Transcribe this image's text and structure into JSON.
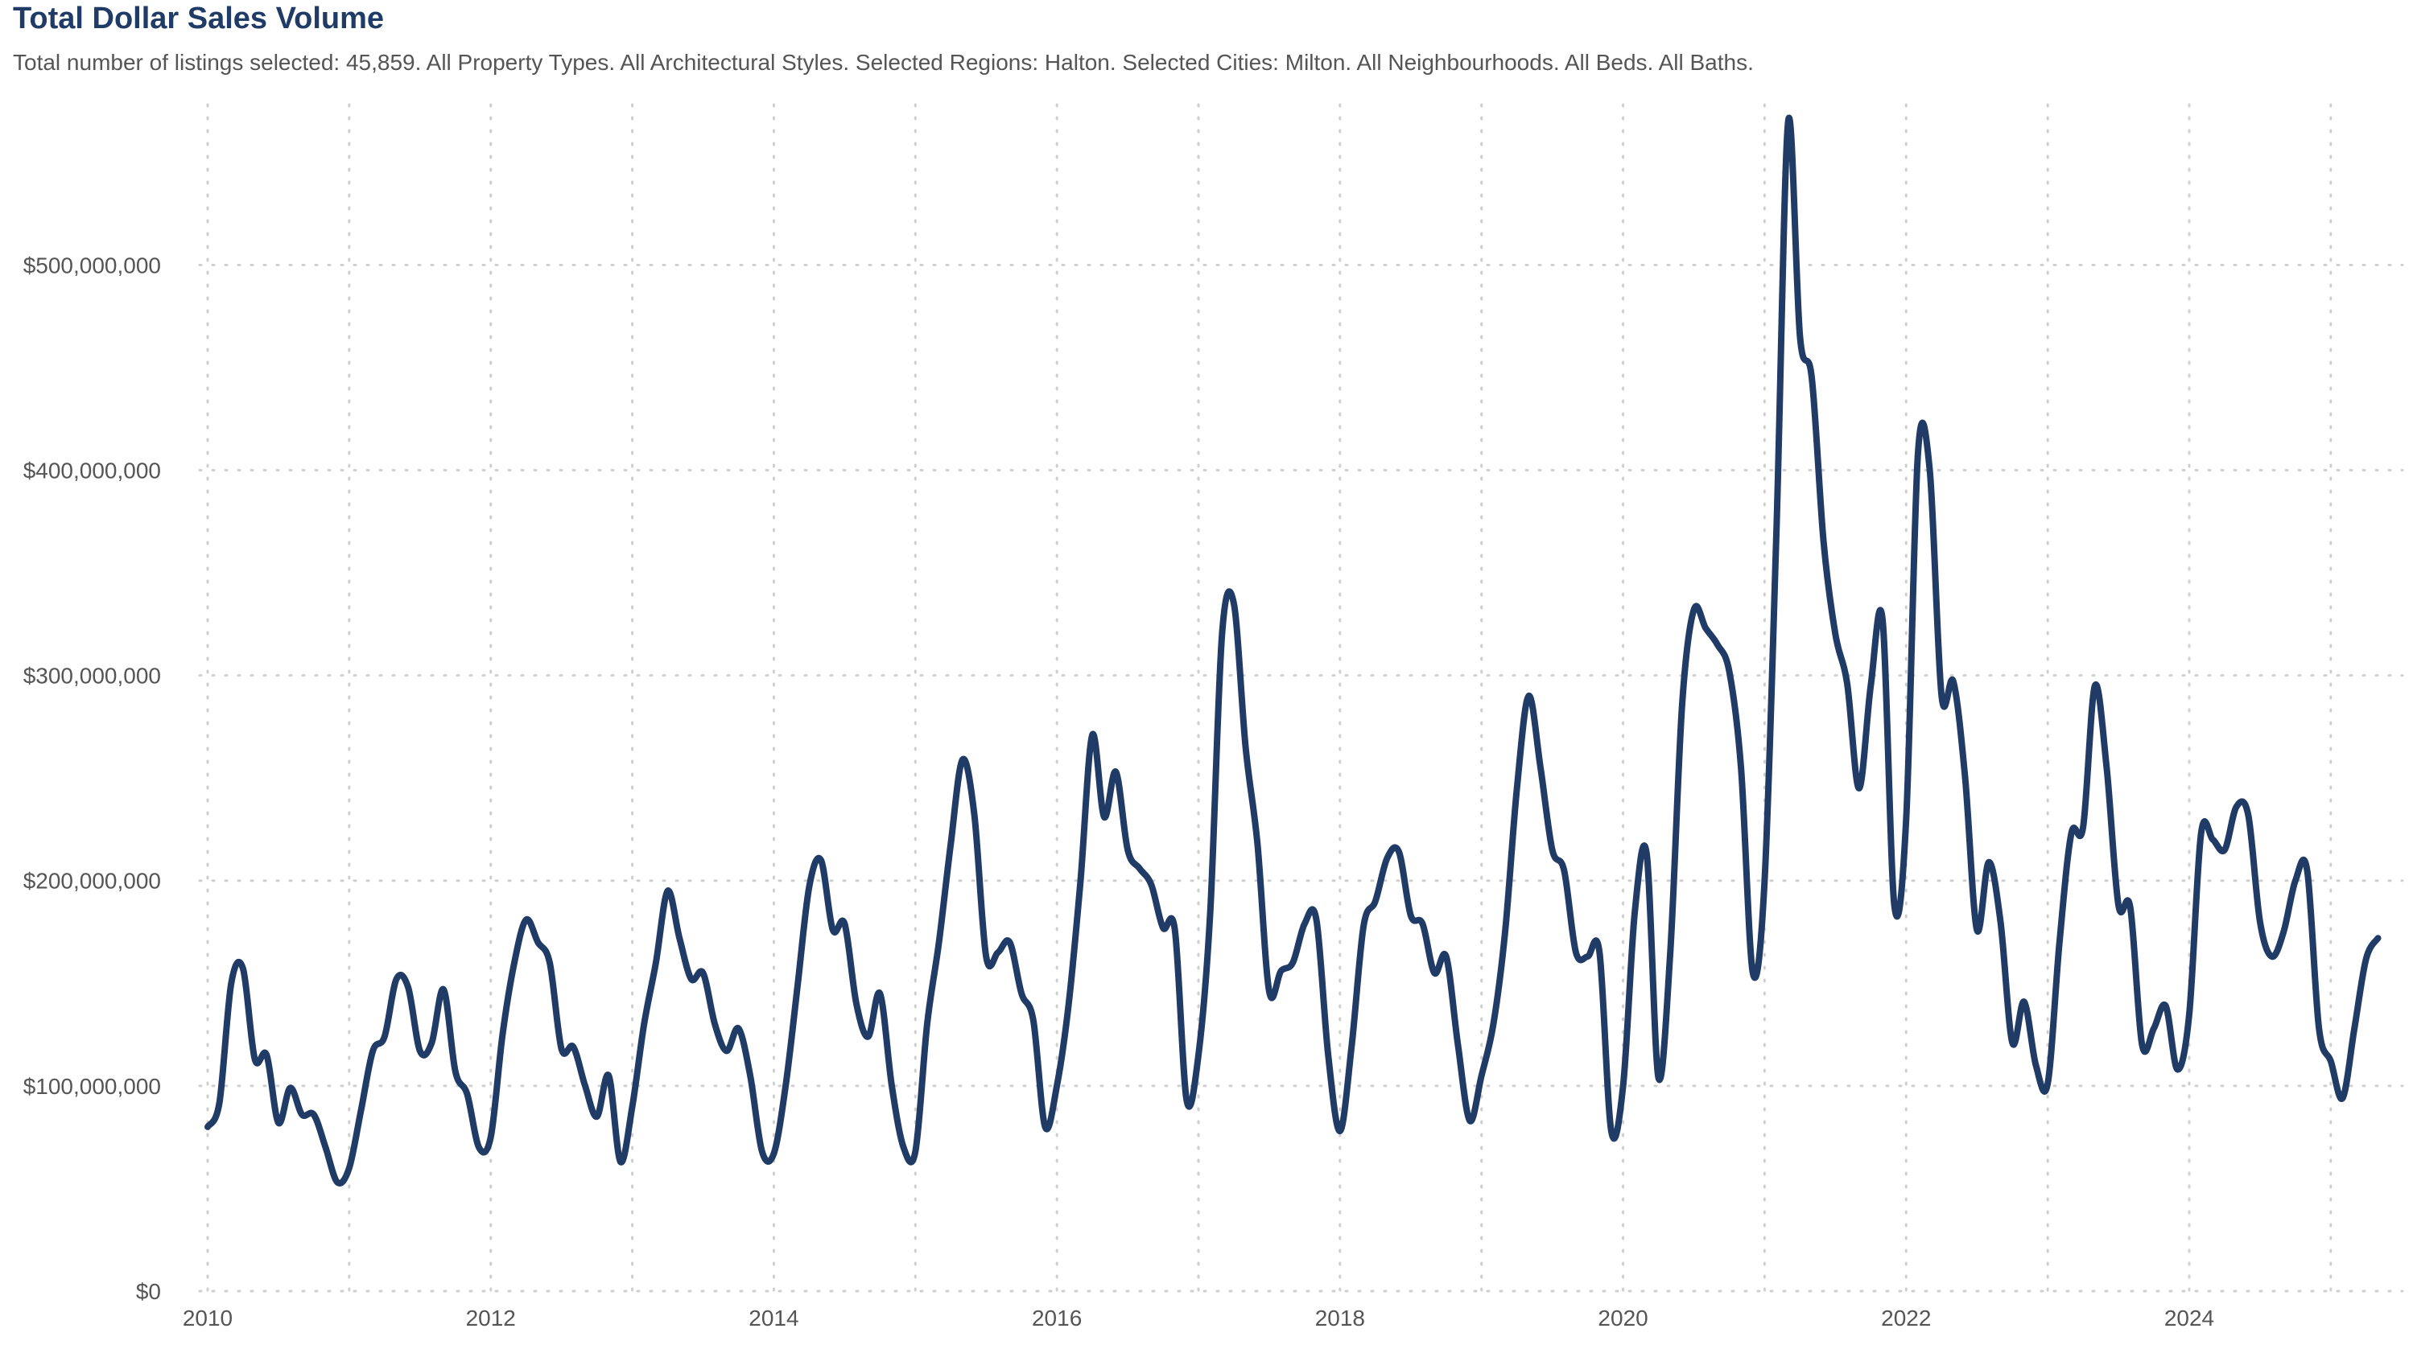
{
  "chart_data": {
    "type": "line",
    "title": "Total Dollar Sales Volume",
    "subtitle": "Total number of listings selected: 45,859. All Property Types. All Architectural Styles. Selected Regions: Halton. Selected Cities: Milton. All Neighbourhoods. All Beds. All Baths.",
    "xlabel": "",
    "ylabel": "",
    "grid": true,
    "x_ticks": [
      "2010",
      "2012",
      "2014",
      "2016",
      "2018",
      "2020",
      "2022",
      "2024"
    ],
    "y_ticks": [
      "$0",
      "$100,000,000",
      "$200,000,000",
      "$300,000,000",
      "$400,000,000",
      "$500,000,000"
    ],
    "xlim": [
      "2010-01",
      "2025-06"
    ],
    "ylim": [
      0,
      575000000
    ],
    "series": [
      {
        "points": [
          [
            "2010-01",
            80000000
          ],
          [
            "2010-02",
            92000000
          ],
          [
            "2010-03",
            150000000
          ],
          [
            "2010-04",
            157000000
          ],
          [
            "2010-05",
            113000000
          ],
          [
            "2010-06",
            115000000
          ],
          [
            "2010-07",
            82000000
          ],
          [
            "2010-08",
            99000000
          ],
          [
            "2010-09",
            86000000
          ],
          [
            "2010-10",
            86000000
          ],
          [
            "2010-11",
            70000000
          ],
          [
            "2010-12",
            53000000
          ],
          [
            "2011-01",
            60000000
          ],
          [
            "2011-02",
            88000000
          ],
          [
            "2011-03",
            117000000
          ],
          [
            "2011-04",
            124000000
          ],
          [
            "2011-05",
            152000000
          ],
          [
            "2011-06",
            148000000
          ],
          [
            "2011-07",
            117000000
          ],
          [
            "2011-08",
            121000000
          ],
          [
            "2011-09",
            147000000
          ],
          [
            "2011-10",
            107000000
          ],
          [
            "2011-11",
            96000000
          ],
          [
            "2011-12",
            70000000
          ],
          [
            "2012-01",
            75000000
          ],
          [
            "2012-02",
            125000000
          ],
          [
            "2012-03",
            160000000
          ],
          [
            "2012-04",
            181000000
          ],
          [
            "2012-05",
            170000000
          ],
          [
            "2012-06",
            160000000
          ],
          [
            "2012-07",
            118000000
          ],
          [
            "2012-08",
            119000000
          ],
          [
            "2012-09",
            100000000
          ],
          [
            "2012-10",
            85000000
          ],
          [
            "2012-11",
            105000000
          ],
          [
            "2012-12",
            63000000
          ],
          [
            "2013-01",
            90000000
          ],
          [
            "2013-02",
            130000000
          ],
          [
            "2013-03",
            160000000
          ],
          [
            "2013-04",
            195000000
          ],
          [
            "2013-05",
            172000000
          ],
          [
            "2013-06",
            152000000
          ],
          [
            "2013-07",
            155000000
          ],
          [
            "2013-08",
            130000000
          ],
          [
            "2013-09",
            117000000
          ],
          [
            "2013-10",
            128000000
          ],
          [
            "2013-11",
            105000000
          ],
          [
            "2013-12",
            68000000
          ],
          [
            "2014-01",
            67000000
          ],
          [
            "2014-02",
            100000000
          ],
          [
            "2014-03",
            148000000
          ],
          [
            "2014-04",
            197000000
          ],
          [
            "2014-05",
            210000000
          ],
          [
            "2014-06",
            176000000
          ],
          [
            "2014-07",
            179000000
          ],
          [
            "2014-08",
            140000000
          ],
          [
            "2014-09",
            124000000
          ],
          [
            "2014-10",
            145000000
          ],
          [
            "2014-11",
            100000000
          ],
          [
            "2014-12",
            70000000
          ],
          [
            "2015-01",
            68000000
          ],
          [
            "2015-02",
            130000000
          ],
          [
            "2015-03",
            170000000
          ],
          [
            "2015-04",
            218000000
          ],
          [
            "2015-05",
            259000000
          ],
          [
            "2015-06",
            232000000
          ],
          [
            "2015-07",
            163000000
          ],
          [
            "2015-08",
            165000000
          ],
          [
            "2015-09",
            170000000
          ],
          [
            "2015-10",
            145000000
          ],
          [
            "2015-11",
            132000000
          ],
          [
            "2015-12",
            80000000
          ],
          [
            "2016-01",
            100000000
          ],
          [
            "2016-02",
            140000000
          ],
          [
            "2016-03",
            200000000
          ],
          [
            "2016-04",
            271000000
          ],
          [
            "2016-05",
            231000000
          ],
          [
            "2016-06",
            253000000
          ],
          [
            "2016-07",
            215000000
          ],
          [
            "2016-08",
            206000000
          ],
          [
            "2016-09",
            198000000
          ],
          [
            "2016-10",
            177000000
          ],
          [
            "2016-11",
            176000000
          ],
          [
            "2016-12",
            93000000
          ],
          [
            "2017-01",
            115000000
          ],
          [
            "2017-02",
            185000000
          ],
          [
            "2017-03",
            320000000
          ],
          [
            "2017-04",
            335000000
          ],
          [
            "2017-05",
            265000000
          ],
          [
            "2017-06",
            218000000
          ],
          [
            "2017-07",
            146000000
          ],
          [
            "2017-08",
            156000000
          ],
          [
            "2017-09",
            160000000
          ],
          [
            "2017-10",
            179000000
          ],
          [
            "2017-11",
            181000000
          ],
          [
            "2017-12",
            115000000
          ],
          [
            "2018-01",
            78000000
          ],
          [
            "2018-02",
            120000000
          ],
          [
            "2018-03",
            178000000
          ],
          [
            "2018-04",
            190000000
          ],
          [
            "2018-05",
            211000000
          ],
          [
            "2018-06",
            214000000
          ],
          [
            "2018-07",
            183000000
          ],
          [
            "2018-08",
            179000000
          ],
          [
            "2018-09",
            155000000
          ],
          [
            "2018-10",
            163000000
          ],
          [
            "2018-11",
            120000000
          ],
          [
            "2018-12",
            83000000
          ],
          [
            "2019-01",
            105000000
          ],
          [
            "2019-02",
            130000000
          ],
          [
            "2019-03",
            175000000
          ],
          [
            "2019-04",
            245000000
          ],
          [
            "2019-05",
            290000000
          ],
          [
            "2019-06",
            255000000
          ],
          [
            "2019-07",
            215000000
          ],
          [
            "2019-08",
            205000000
          ],
          [
            "2019-09",
            165000000
          ],
          [
            "2019-10",
            163000000
          ],
          [
            "2019-11",
            165000000
          ],
          [
            "2019-12",
            78000000
          ],
          [
            "2020-01",
            100000000
          ],
          [
            "2020-02",
            185000000
          ],
          [
            "2020-03",
            213000000
          ],
          [
            "2020-04",
            104000000
          ],
          [
            "2020-05",
            165000000
          ],
          [
            "2020-06",
            285000000
          ],
          [
            "2020-07",
            332000000
          ],
          [
            "2020-08",
            323000000
          ],
          [
            "2020-09",
            315000000
          ],
          [
            "2020-10",
            302000000
          ],
          [
            "2020-11",
            255000000
          ],
          [
            "2020-12",
            155000000
          ],
          [
            "2021-01",
            200000000
          ],
          [
            "2021-02",
            370000000
          ],
          [
            "2021-03",
            570000000
          ],
          [
            "2021-04",
            465000000
          ],
          [
            "2021-05",
            445000000
          ],
          [
            "2021-06",
            365000000
          ],
          [
            "2021-07",
            320000000
          ],
          [
            "2021-08",
            296000000
          ],
          [
            "2021-09",
            245000000
          ],
          [
            "2021-10",
            295000000
          ],
          [
            "2021-11",
            327000000
          ],
          [
            "2021-12",
            188000000
          ],
          [
            "2022-01",
            230000000
          ],
          [
            "2022-02",
            408000000
          ],
          [
            "2022-03",
            400000000
          ],
          [
            "2022-04",
            290000000
          ],
          [
            "2022-05",
            297000000
          ],
          [
            "2022-06",
            250000000
          ],
          [
            "2022-07",
            176000000
          ],
          [
            "2022-08",
            209000000
          ],
          [
            "2022-09",
            180000000
          ],
          [
            "2022-10",
            121000000
          ],
          [
            "2022-11",
            141000000
          ],
          [
            "2022-12",
            110000000
          ],
          [
            "2023-01",
            101000000
          ],
          [
            "2023-02",
            170000000
          ],
          [
            "2023-03",
            223000000
          ],
          [
            "2023-04",
            226000000
          ],
          [
            "2023-05",
            295000000
          ],
          [
            "2023-06",
            255000000
          ],
          [
            "2023-07",
            188000000
          ],
          [
            "2023-08",
            187000000
          ],
          [
            "2023-09",
            120000000
          ],
          [
            "2023-10",
            128000000
          ],
          [
            "2023-11",
            139000000
          ],
          [
            "2023-12",
            108000000
          ],
          [
            "2024-01",
            135000000
          ],
          [
            "2024-02",
            223000000
          ],
          [
            "2024-03",
            220000000
          ],
          [
            "2024-04",
            215000000
          ],
          [
            "2024-05",
            236000000
          ],
          [
            "2024-06",
            232000000
          ],
          [
            "2024-07",
            180000000
          ],
          [
            "2024-08",
            163000000
          ],
          [
            "2024-09",
            175000000
          ],
          [
            "2024-10",
            200000000
          ],
          [
            "2024-11",
            205000000
          ],
          [
            "2024-12",
            128000000
          ],
          [
            "2025-01",
            112000000
          ],
          [
            "2025-02",
            94000000
          ],
          [
            "2025-03",
            128000000
          ],
          [
            "2025-04",
            162000000
          ],
          [
            "2025-05",
            172000000
          ]
        ]
      }
    ]
  },
  "colors": {
    "line": "#1f3b66",
    "title": "#1f3b66",
    "text": "#555555",
    "grid": "#cfcfcf"
  }
}
